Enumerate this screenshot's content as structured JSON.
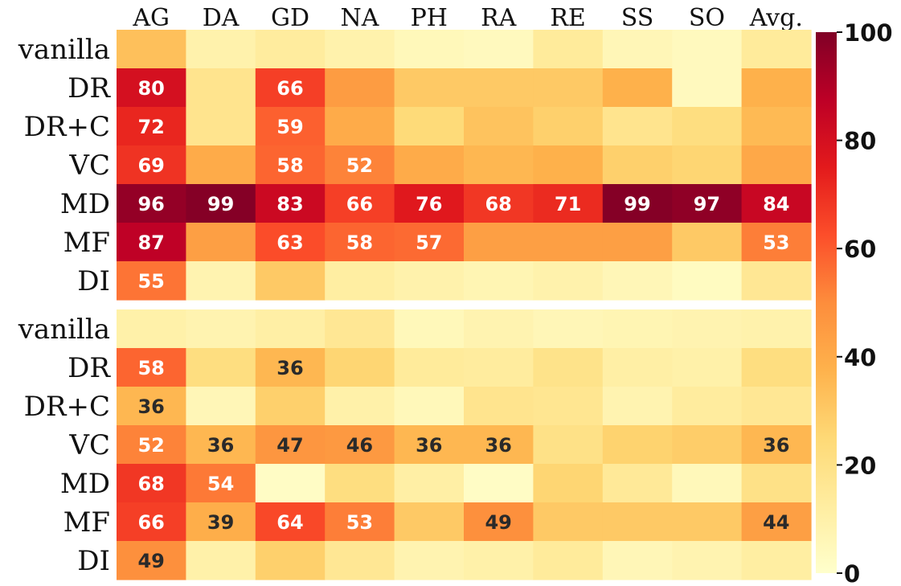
{
  "chart_data": {
    "type": "heatmap",
    "columns": [
      "AG",
      "DA",
      "GD",
      "NA",
      "PH",
      "RA",
      "RE",
      "SS",
      "SO",
      "Avg."
    ],
    "panels": [
      {
        "rows": [
          "vanilla",
          "DR",
          "DR+C",
          "VC",
          "MD",
          "MF",
          "DI"
        ],
        "values": [
          [
            33,
            9,
            13,
            9,
            5,
            4,
            14,
            6,
            4,
            14
          ],
          [
            80,
            18,
            66,
            45,
            30,
            30,
            30,
            38,
            4,
            38
          ],
          [
            72,
            18,
            59,
            40,
            24,
            32,
            28,
            18,
            22,
            35
          ],
          [
            69,
            40,
            58,
            52,
            40,
            36,
            38,
            28,
            26,
            41
          ],
          [
            96,
            99,
            83,
            66,
            76,
            68,
            71,
            99,
            97,
            84
          ],
          [
            87,
            44,
            63,
            58,
            57,
            44,
            44,
            44,
            30,
            53
          ],
          [
            55,
            8,
            30,
            12,
            9,
            7,
            9,
            6,
            3,
            16
          ]
        ],
        "labels": [
          [
            "",
            "",
            "",
            "",
            "",
            "",
            "",
            "",
            "",
            ""
          ],
          [
            "80",
            "",
            "66",
            "",
            "",
            "",
            "",
            "",
            "",
            ""
          ],
          [
            "72",
            "",
            "59",
            "",
            "",
            "",
            "",
            "",
            "",
            ""
          ],
          [
            "69",
            "",
            "58",
            "52",
            "",
            "",
            "",
            "",
            "",
            ""
          ],
          [
            "96",
            "99",
            "83",
            "66",
            "76",
            "68",
            "71",
            "99",
            "97",
            "84"
          ],
          [
            "87",
            "",
            "63",
            "58",
            "57",
            "",
            "",
            "",
            "",
            "53"
          ],
          [
            "55",
            "",
            "",
            "",
            "",
            "",
            "",
            "",
            "",
            ""
          ]
        ]
      },
      {
        "rows": [
          "vanilla",
          "DR",
          "DR+C",
          "VC",
          "MD",
          "MF",
          "DI"
        ],
        "values": [
          [
            10,
            8,
            11,
            16,
            5,
            8,
            6,
            7,
            8,
            9
          ],
          [
            58,
            22,
            36,
            26,
            14,
            13,
            19,
            11,
            10,
            22
          ],
          [
            36,
            6,
            28,
            10,
            5,
            18,
            17,
            8,
            13,
            16
          ],
          [
            52,
            36,
            47,
            46,
            36,
            36,
            20,
            27,
            29,
            36
          ],
          [
            68,
            54,
            2,
            22,
            11,
            2,
            26,
            15,
            5,
            20
          ],
          [
            66,
            39,
            64,
            53,
            30,
            49,
            30,
            30,
            30,
            44
          ],
          [
            49,
            10,
            28,
            16,
            8,
            10,
            14,
            6,
            8,
            12
          ]
        ],
        "labels": [
          [
            "",
            "",
            "",
            "",
            "",
            "",
            "",
            "",
            "",
            ""
          ],
          [
            "58",
            "",
            "36",
            "",
            "",
            "",
            "",
            "",
            "",
            ""
          ],
          [
            "36",
            "",
            "",
            "",
            "",
            "",
            "",
            "",
            "",
            ""
          ],
          [
            "52",
            "36",
            "47",
            "46",
            "36",
            "36",
            "",
            "",
            "",
            "36"
          ],
          [
            "68",
            "54",
            "",
            "",
            "",
            "",
            "",
            "",
            "",
            ""
          ],
          [
            "66",
            "39",
            "64",
            "53",
            "",
            "49",
            "",
            "",
            "",
            "44"
          ],
          [
            "49",
            "",
            "",
            "",
            "",
            "",
            "",
            "",
            "",
            ""
          ]
        ]
      }
    ],
    "colorbar": {
      "min": 0,
      "max": 100,
      "ticks": [
        "100",
        "80",
        "60",
        "40",
        "20",
        "0"
      ],
      "colormap": "YlOrRd",
      "stops": [
        "#ffffcc",
        "#ffeda0",
        "#fed976",
        "#feb24c",
        "#fd8d3c",
        "#fc4e2a",
        "#e31a1c",
        "#bd0026",
        "#800026"
      ]
    }
  }
}
